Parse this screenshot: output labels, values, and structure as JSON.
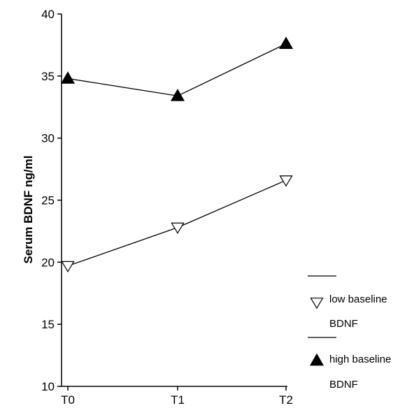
{
  "chart_data": {
    "type": "line",
    "title": "",
    "xlabel": "",
    "ylabel": "Serum BDNF ng/ml",
    "categories": [
      "T0",
      "T1",
      "T2"
    ],
    "ylim": [
      10,
      40
    ],
    "yticks": [
      "10",
      "15",
      "20",
      "25",
      "30",
      "35",
      "40"
    ],
    "grid": false,
    "legend_position": "right",
    "series": [
      {
        "name": "low baseline BDNF",
        "name_lines": [
          "low baseline",
          "BDNF"
        ],
        "marker": "open-down-triangle",
        "values": [
          19.7,
          22.8,
          26.6
        ]
      },
      {
        "name": "high baseline BDNF",
        "name_lines": [
          "high baseline",
          "BDNF"
        ],
        "marker": "filled-up-triangle",
        "values": [
          34.8,
          33.4,
          37.6
        ]
      }
    ]
  }
}
